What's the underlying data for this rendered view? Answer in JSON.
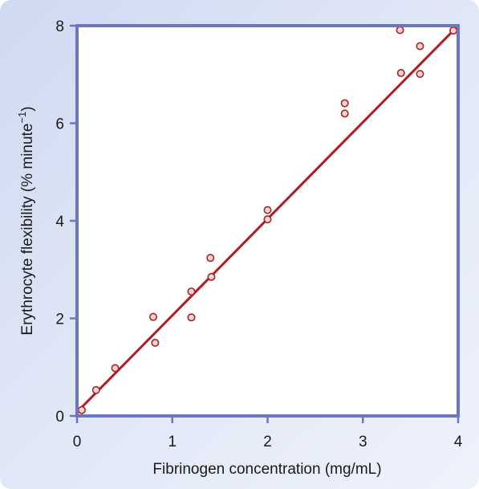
{
  "chart_data": {
    "type": "scatter",
    "title": "",
    "xlabel": "Fibrinogen concentration (mg/mL)",
    "ylabel": {
      "text": "Erythrocyte flexibility (% minute",
      "superscript": "−1",
      "suffix": ")"
    },
    "xlim": [
      0,
      4
    ],
    "ylim": [
      0,
      8
    ],
    "x_ticks": [
      "0",
      "1",
      "2",
      "3",
      "4"
    ],
    "y_ticks": [
      "0",
      "2",
      "4",
      "6",
      "8"
    ],
    "grid": false,
    "points": [
      {
        "x": 0.05,
        "y": 0.12
      },
      {
        "x": 0.2,
        "y": 0.53
      },
      {
        "x": 0.4,
        "y": 0.98
      },
      {
        "x": 0.8,
        "y": 2.03
      },
      {
        "x": 0.82,
        "y": 1.5
      },
      {
        "x": 1.2,
        "y": 2.55
      },
      {
        "x": 1.2,
        "y": 2.02
      },
      {
        "x": 1.4,
        "y": 3.24
      },
      {
        "x": 1.41,
        "y": 2.85
      },
      {
        "x": 2.0,
        "y": 4.22
      },
      {
        "x": 2.0,
        "y": 4.03
      },
      {
        "x": 2.81,
        "y": 6.41
      },
      {
        "x": 2.81,
        "y": 6.2
      },
      {
        "x": 3.39,
        "y": 7.91
      },
      {
        "x": 3.4,
        "y": 7.03
      },
      {
        "x": 3.6,
        "y": 7.58
      },
      {
        "x": 3.6,
        "y": 7.01
      },
      {
        "x": 3.95,
        "y": 7.9
      }
    ],
    "fit_line": {
      "x": [
        0.02,
        4.0
      ],
      "y": [
        0.12,
        8.0
      ]
    },
    "colors": {
      "frame": "#6b76c2",
      "fit_line": "#b01c22",
      "point_stroke": "#b01c22",
      "point_fill": "#f3d7d0",
      "panel_background": "#ffffff"
    }
  }
}
